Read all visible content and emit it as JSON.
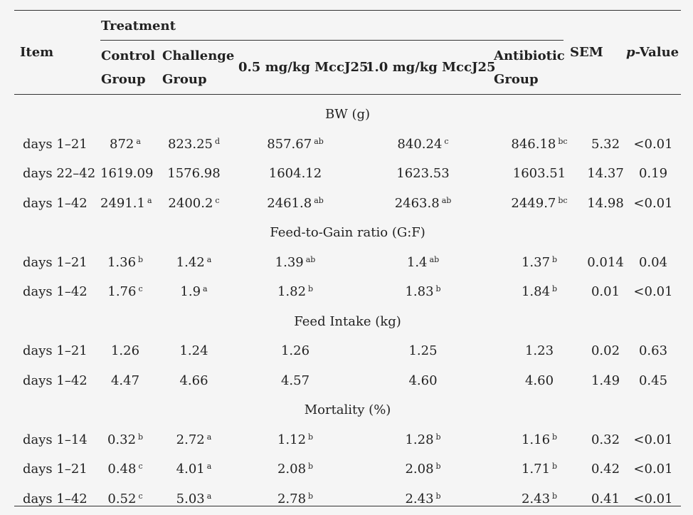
{
  "header": {
    "item": "Item",
    "treatment": "Treatment",
    "control_line1": "Control",
    "control_line2": "Group",
    "challenge_line1": "Challenge",
    "challenge_line2": "Group",
    "mcc05": "0.5 mg/kg MccJ25",
    "mcc10": "1.0 mg/kg MccJ25",
    "antibiotic_line1": "Antibiotic",
    "antibiotic_line2": "Group",
    "sem": "SEM",
    "p_italic": "p",
    "p_rest": "-Value"
  },
  "sections": [
    {
      "title": "BW (g)",
      "rows": [
        {
          "item": "days 1–21",
          "control": "872",
          "control_sup": "a",
          "challenge": "823.25",
          "challenge_sup": "d",
          "mcc05": "857.67",
          "mcc05_sup": "ab",
          "mcc10": "840.24",
          "mcc10_sup": "c",
          "antibiotic": "846.18",
          "antibiotic_sup": "bc",
          "sem": "5.32",
          "p": "<0.01"
        },
        {
          "item": "days 22–42",
          "control": "1619.09",
          "control_sup": "",
          "challenge": "1576.98",
          "challenge_sup": "",
          "mcc05": "1604.12",
          "mcc05_sup": "",
          "mcc10": "1623.53",
          "mcc10_sup": "",
          "antibiotic": "1603.51",
          "antibiotic_sup": "",
          "sem": "14.37",
          "p": "0.19"
        },
        {
          "item": "days 1–42",
          "control": "2491.1",
          "control_sup": "a",
          "challenge": "2400.2",
          "challenge_sup": "c",
          "mcc05": "2461.8",
          "mcc05_sup": "ab",
          "mcc10": "2463.8",
          "mcc10_sup": "ab",
          "antibiotic": "2449.7",
          "antibiotic_sup": "bc",
          "sem": "14.98",
          "p": "<0.01"
        }
      ]
    },
    {
      "title": "Feed-to-Gain ratio (G:F)",
      "rows": [
        {
          "item": "days 1–21",
          "control": "1.36",
          "control_sup": "b",
          "challenge": "1.42",
          "challenge_sup": "a",
          "mcc05": "1.39",
          "mcc05_sup": "ab",
          "mcc10": "1.4",
          "mcc10_sup": "ab",
          "antibiotic": "1.37",
          "antibiotic_sup": "b",
          "sem": "0.014",
          "p": "0.04"
        },
        {
          "item": "days 1–42",
          "control": "1.76",
          "control_sup": "c",
          "challenge": "1.9",
          "challenge_sup": "a",
          "mcc05": "1.82",
          "mcc05_sup": "b",
          "mcc10": "1.83",
          "mcc10_sup": "b",
          "antibiotic": "1.84",
          "antibiotic_sup": "b",
          "sem": "0.01",
          "p": "<0.01"
        }
      ]
    },
    {
      "title": "Feed Intake (kg)",
      "rows": [
        {
          "item": "days 1–21",
          "control": "1.26",
          "control_sup": "",
          "challenge": "1.24",
          "challenge_sup": "",
          "mcc05": "1.26",
          "mcc05_sup": "",
          "mcc10": "1.25",
          "mcc10_sup": "",
          "antibiotic": "1.23",
          "antibiotic_sup": "",
          "sem": "0.02",
          "p": "0.63"
        },
        {
          "item": "days 1–42",
          "control": "4.47",
          "control_sup": "",
          "challenge": "4.66",
          "challenge_sup": "",
          "mcc05": "4.57",
          "mcc05_sup": "",
          "mcc10": "4.60",
          "mcc10_sup": "",
          "antibiotic": "4.60",
          "antibiotic_sup": "",
          "sem": "1.49",
          "p": "0.45"
        }
      ]
    },
    {
      "title": "Mortality (%)",
      "rows": [
        {
          "item": "days 1–14",
          "control": "0.32",
          "control_sup": "b",
          "challenge": "2.72",
          "challenge_sup": "a",
          "mcc05": "1.12",
          "mcc05_sup": "b",
          "mcc10": "1.28",
          "mcc10_sup": "b",
          "antibiotic": "1.16",
          "antibiotic_sup": "b",
          "sem": "0.32",
          "p": "<0.01"
        },
        {
          "item": "days 1–21",
          "control": "0.48",
          "control_sup": "c",
          "challenge": "4.01",
          "challenge_sup": "a",
          "mcc05": "2.08",
          "mcc05_sup": "b",
          "mcc10": "2.08",
          "mcc10_sup": "b",
          "antibiotic": "1.71",
          "antibiotic_sup": "b",
          "sem": "0.42",
          "p": "<0.01"
        },
        {
          "item": "days 1–42",
          "control": "0.52",
          "control_sup": "c",
          "challenge": "5.03",
          "challenge_sup": "a",
          "mcc05": "2.78",
          "mcc05_sup": "b",
          "mcc10": "2.43",
          "mcc10_sup": "b",
          "antibiotic": "2.43",
          "antibiotic_sup": "b",
          "sem": "0.41",
          "p": "<0.01"
        }
      ]
    }
  ]
}
